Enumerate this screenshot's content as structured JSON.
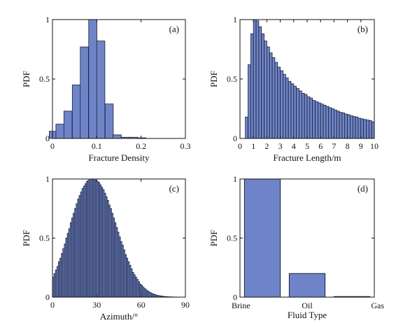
{
  "colors": {
    "bar_fill": "#6f84c8",
    "bar_stroke": "#1a1f33",
    "axis": "#111111"
  },
  "chart_data": [
    {
      "id": "a",
      "type": "bar",
      "panel_label": "(a)",
      "xlabel": "Fracture Density",
      "ylabel": "PDF",
      "xlim": [
        0,
        0.3
      ],
      "ylim": [
        0,
        1
      ],
      "xticks": [
        0,
        0.1,
        0.2,
        0.3
      ],
      "xtick_labels": [
        "0",
        "0.1",
        "0.2",
        "0.3"
      ],
      "yticks": [
        0,
        0.5,
        1
      ],
      "ytick_labels": [
        "0",
        "0.5",
        "1"
      ],
      "bin_width": 0.0185,
      "bin_centers": [
        0.002,
        0.017,
        0.035,
        0.054,
        0.072,
        0.091,
        0.109,
        0.128,
        0.146,
        0.165,
        0.183,
        0.202
      ],
      "values": [
        0.06,
        0.12,
        0.23,
        0.45,
        0.77,
        1.0,
        0.82,
        0.29,
        0.03,
        0.01,
        0.01,
        0.005
      ]
    },
    {
      "id": "b",
      "type": "bar",
      "panel_label": "(b)",
      "xlabel": "Fracture Length/m",
      "ylabel": "PDF",
      "xlim": [
        0,
        10
      ],
      "ylim": [
        0,
        1
      ],
      "xticks": [
        0,
        1,
        2,
        3,
        4,
        5,
        6,
        7,
        8,
        9,
        10
      ],
      "xtick_labels": [
        "0",
        "1",
        "2",
        "3",
        "4",
        "5",
        "6",
        "7",
        "8",
        "9",
        "10"
      ],
      "yticks": [
        0,
        0.5,
        1
      ],
      "ytick_labels": [
        "0",
        "0.5",
        "1"
      ],
      "bin_width": 0.2,
      "bin_centers": [
        0.5,
        0.7,
        0.9,
        1.1,
        1.3,
        1.5,
        1.7,
        1.9,
        2.1,
        2.3,
        2.5,
        2.7,
        2.9,
        3.1,
        3.3,
        3.5,
        3.7,
        3.9,
        4.1,
        4.3,
        4.5,
        4.7,
        4.9,
        5.1,
        5.3,
        5.5,
        5.7,
        5.9,
        6.1,
        6.3,
        6.5,
        6.7,
        6.9,
        7.1,
        7.3,
        7.5,
        7.7,
        7.9,
        8.1,
        8.3,
        8.5,
        8.7,
        8.9,
        9.1,
        9.3,
        9.5,
        9.7,
        9.9
      ],
      "values": [
        0.18,
        0.62,
        0.88,
        1.0,
        0.99,
        0.94,
        0.88,
        0.82,
        0.77,
        0.72,
        0.68,
        0.64,
        0.6,
        0.57,
        0.54,
        0.51,
        0.48,
        0.46,
        0.44,
        0.42,
        0.4,
        0.38,
        0.37,
        0.35,
        0.34,
        0.32,
        0.31,
        0.3,
        0.29,
        0.28,
        0.27,
        0.26,
        0.25,
        0.24,
        0.23,
        0.22,
        0.215,
        0.205,
        0.2,
        0.19,
        0.185,
        0.18,
        0.17,
        0.165,
        0.16,
        0.155,
        0.15,
        0.14
      ]
    },
    {
      "id": "c",
      "type": "bar",
      "panel_label": "(c)",
      "xlabel": "Azimuth/°",
      "ylabel": "PDF",
      "xlim": [
        0,
        90
      ],
      "ylim": [
        0,
        1
      ],
      "xticks": [
        0,
        30,
        60,
        90
      ],
      "xtick_labels": [
        "0",
        "30",
        "60",
        "90"
      ],
      "yticks": [
        0,
        0.5,
        1
      ],
      "ytick_labels": [
        "0",
        "0.5",
        "1"
      ],
      "bin_width": 1,
      "bin_centers": [
        0.5,
        1.5,
        2.5,
        3.5,
        4.5,
        5.5,
        6.5,
        7.5,
        8.5,
        9.5,
        10.5,
        11.5,
        12.5,
        13.5,
        14.5,
        15.5,
        16.5,
        17.5,
        18.5,
        19.5,
        20.5,
        21.5,
        22.5,
        23.5,
        24.5,
        25.5,
        26.5,
        27.5,
        28.5,
        29.5,
        30.5,
        31.5,
        32.5,
        33.5,
        34.5,
        35.5,
        36.5,
        37.5,
        38.5,
        39.5,
        40.5,
        41.5,
        42.5,
        43.5,
        44.5,
        45.5,
        46.5,
        47.5,
        48.5,
        49.5,
        50.5,
        51.5,
        52.5,
        53.5,
        54.5,
        55.5,
        56.5,
        57.5,
        58.5,
        59.5,
        60.5,
        61.5,
        62.5,
        63.5,
        64.5,
        65.5,
        66.5,
        67.5,
        68.5,
        69.5,
        70.5,
        71.5,
        72.5,
        73.5,
        74.5,
        75.5,
        76.5,
        77.5,
        78.5,
        79.5,
        80.5,
        81.5,
        82.5,
        83.5,
        84.5,
        85.5,
        86.5,
        87.5,
        88.5,
        89.5
      ],
      "values": [
        0.17,
        0.2,
        0.23,
        0.26,
        0.3,
        0.33,
        0.37,
        0.41,
        0.45,
        0.5,
        0.54,
        0.58,
        0.63,
        0.67,
        0.71,
        0.75,
        0.79,
        0.83,
        0.86,
        0.89,
        0.92,
        0.94,
        0.96,
        0.98,
        0.99,
        1.0,
        1.0,
        1.0,
        1.0,
        0.99,
        0.98,
        0.97,
        0.95,
        0.93,
        0.91,
        0.88,
        0.85,
        0.82,
        0.78,
        0.75,
        0.71,
        0.67,
        0.63,
        0.59,
        0.55,
        0.51,
        0.47,
        0.44,
        0.4,
        0.36,
        0.33,
        0.3,
        0.27,
        0.24,
        0.21,
        0.19,
        0.17,
        0.15,
        0.13,
        0.11,
        0.1,
        0.085,
        0.073,
        0.062,
        0.052,
        0.044,
        0.037,
        0.031,
        0.026,
        0.021,
        0.017,
        0.014,
        0.012,
        0.01,
        0.008,
        0.006,
        0.005,
        0.004,
        0.003,
        0.0025,
        0.002,
        0.0015,
        0.0012,
        0.001,
        0.0008,
        0.0006,
        0.0005,
        0.0004,
        0.0003,
        0.0002
      ]
    },
    {
      "id": "d",
      "type": "bar",
      "panel_label": "(d)",
      "xlabel": "Fluid Type",
      "ylabel": "PDF",
      "categories": [
        "Brine",
        "Oil",
        "Gas"
      ],
      "ylim": [
        0,
        1
      ],
      "yticks": [
        0,
        0.5,
        1
      ],
      "ytick_labels": [
        "0",
        "0.5",
        "1"
      ],
      "values": [
        1.0,
        0.2,
        0.005
      ]
    }
  ]
}
